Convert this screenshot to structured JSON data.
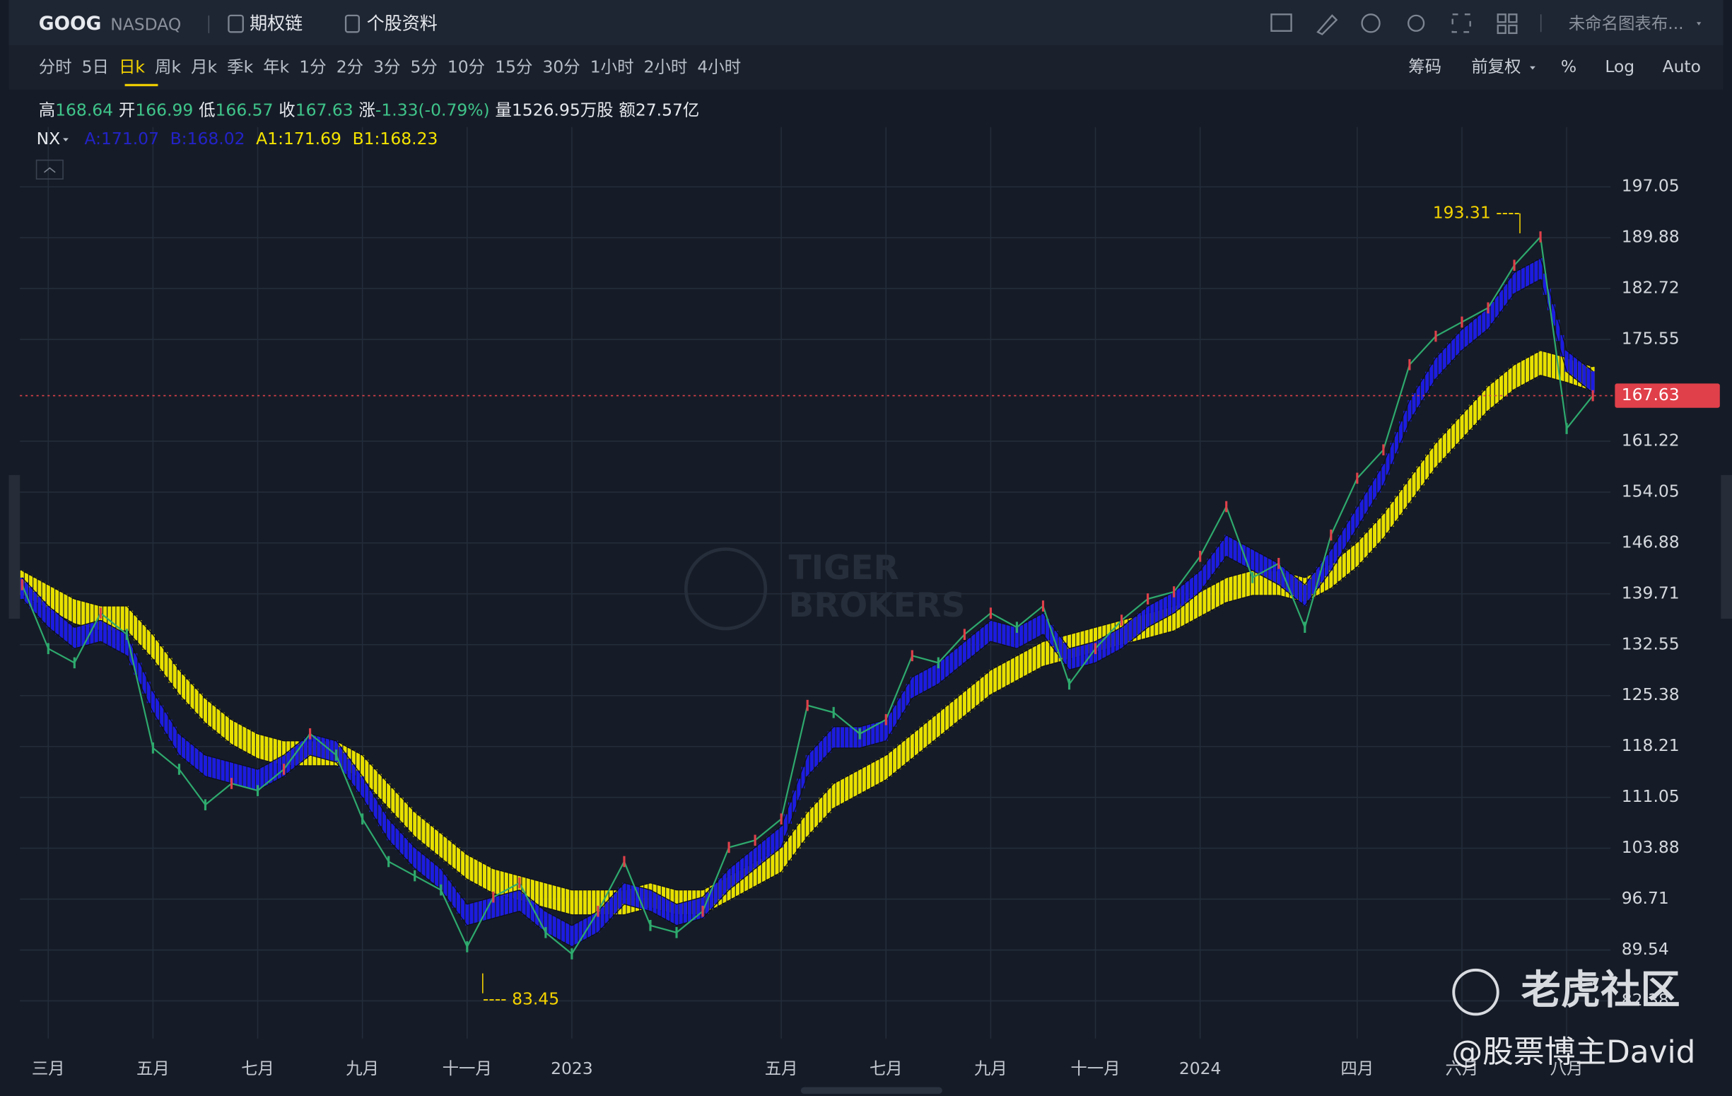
{
  "toolbar": {
    "symbol": "GOOG",
    "exchange": "NASDAQ",
    "links": [
      "期权链",
      "个股资料"
    ],
    "layout_name": "未命名图表布..."
  },
  "periods": [
    "分时",
    "5日",
    "日k",
    "周k",
    "月k",
    "季k",
    "年k",
    "1分",
    "2分",
    "3分",
    "5分",
    "10分",
    "15分",
    "30分",
    "1小时",
    "2小时",
    "4小时"
  ],
  "tools": [
    "筹码",
    "前复权",
    "%",
    "Log",
    "Auto"
  ],
  "quote": [
    {
      "label": "高",
      "value": 168.64
    },
    {
      "label": "开",
      "value": 166.99
    },
    {
      "label": "低",
      "value": 166.57
    },
    {
      "label": "收",
      "value": 167.63
    },
    {
      "label": "涨",
      "value": "-1.33(-0.79%)"
    },
    {
      "label": "量",
      "value": "1526.95万股"
    },
    {
      "label": "额",
      "value": "27.57亿"
    }
  ],
  "indicator": {
    "name": "NX",
    "values": [
      "A:171.07",
      "B:168.02",
      "A1:171.69",
      "B1:168.23"
    ]
  },
  "watermark": {
    "brand": [
      "TIGER",
      "BROKERS"
    ],
    "community": "老虎社区",
    "author": "@股票博主David"
  },
  "chart_data": {
    "type": "line",
    "categories": [
      null,
      "三月",
      null,
      null,
      null,
      "五月",
      null,
      null,
      null,
      "七月",
      null,
      null,
      null,
      "九月",
      null,
      null,
      null,
      "十一月",
      null,
      null,
      null,
      "2023",
      null,
      null,
      null,
      null,
      null,
      null,
      null,
      "五月",
      null,
      null,
      null,
      "七月",
      null,
      null,
      null,
      "九月",
      null,
      null,
      null,
      "十一月",
      null,
      null,
      null,
      "2024",
      null,
      null,
      null,
      null,
      null,
      "四月",
      null,
      null,
      null,
      "六月",
      null,
      null,
      null,
      "八月",
      null
    ],
    "series": [
      {
        "color": "#2eaa6e",
        "values": [
          141,
          132,
          130,
          137,
          134,
          118,
          115,
          110,
          113,
          112,
          115,
          120,
          117,
          108,
          102,
          100,
          98,
          90,
          97,
          99,
          92,
          89,
          95,
          102,
          93,
          92,
          95,
          104,
          105,
          108,
          124,
          123,
          120,
          122,
          131,
          130,
          134,
          137,
          135,
          138,
          127,
          132,
          136,
          139,
          140,
          145,
          152,
          142,
          144,
          135,
          148,
          156,
          160,
          172,
          176,
          178,
          180,
          186,
          190,
          163,
          167.63
        ]
      },
      {
        "color": "#1c1ce0",
        "values": [
          142,
          138,
          135,
          136,
          134,
          126,
          120,
          117,
          116,
          115,
          117,
          120,
          119,
          114,
          108,
          104,
          101,
          96,
          97,
          98,
          95,
          93,
          95,
          99,
          98,
          96,
          97,
          101,
          104,
          107,
          117,
          121,
          121,
          122,
          128,
          130,
          133,
          136,
          135,
          137,
          132,
          133,
          135,
          138,
          140,
          143,
          148,
          146,
          144,
          141,
          146,
          152,
          158,
          167,
          173,
          177,
          180,
          185,
          187,
          174,
          171.07
        ]
      },
      {
        "color": "#1c1ce0",
        "values": [
          139,
          135,
          132,
          133,
          131,
          123,
          117,
          114,
          113,
          112,
          114,
          117,
          116,
          111,
          105,
          101,
          98,
          93,
          94,
          95,
          92,
          90,
          92,
          96,
          95,
          93,
          94,
          98,
          101,
          104,
          114,
          118,
          118,
          119,
          125,
          127,
          130,
          133,
          132,
          134,
          129,
          130,
          132,
          135,
          137,
          140,
          145,
          143,
          141,
          138,
          143,
          149,
          155,
          164,
          170,
          174,
          177,
          182,
          184,
          171,
          168.02
        ]
      },
      {
        "color": "#e8e000",
        "values": [
          143,
          141,
          139,
          138,
          138,
          134,
          129,
          125,
          122,
          120,
          119,
          119,
          119,
          117,
          113,
          109,
          106,
          103,
          101,
          100,
          99,
          98,
          98,
          98,
          99,
          98,
          98,
          100,
          102,
          104,
          109,
          113,
          115,
          117,
          120,
          123,
          126,
          129,
          131,
          133,
          134,
          135,
          136,
          137,
          138,
          140,
          142,
          143,
          143,
          142,
          144,
          147,
          151,
          156,
          161,
          165,
          169,
          172,
          174,
          173,
          171.69
        ]
      },
      {
        "color": "#e8e000",
        "values": [
          139.5,
          137.5,
          135.5,
          134.5,
          134.5,
          130.5,
          125.5,
          121.5,
          118.5,
          116.5,
          115.5,
          115.5,
          115.5,
          113.5,
          109.5,
          105.5,
          102.5,
          99.5,
          97.5,
          96.5,
          95.5,
          94.5,
          94.5,
          94.5,
          95.5,
          94.5,
          94.5,
          96.5,
          98.5,
          100.5,
          105.5,
          109.5,
          111.5,
          113.5,
          116.5,
          119.5,
          122.5,
          125.5,
          127.5,
          129.5,
          130.5,
          131.5,
          132.5,
          133.5,
          134.5,
          136.5,
          138.5,
          139.5,
          139.5,
          138.5,
          140.5,
          143.5,
          147.5,
          152.5,
          157.5,
          161.5,
          165.5,
          168.5,
          170.5,
          169.5,
          168.23
        ]
      }
    ],
    "ylim": [
      77.07,
      205.47
    ],
    "yticks": [
      197.05,
      189.88,
      182.72,
      175.55,
      161.22,
      154.05,
      146.88,
      139.71,
      132.55,
      125.38,
      118.21,
      111.05,
      103.88,
      96.71,
      89.54,
      82.38
    ],
    "last_price": 167.63,
    "annotations": [
      {
        "value": 193.31,
        "label": "193.31 ----"
      },
      {
        "value": 83.45,
        "label": "---- 83.45"
      }
    ],
    "grid": true
  }
}
